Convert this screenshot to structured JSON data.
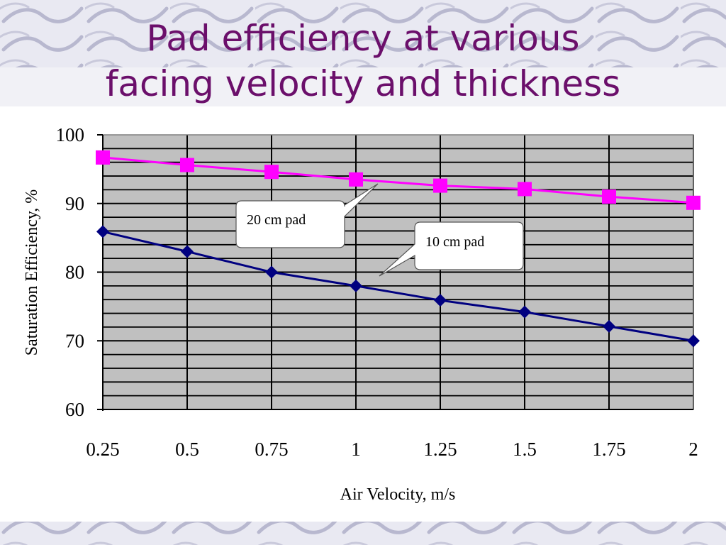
{
  "slide": {
    "title_line1": "Pad efficiency at various",
    "title_line2": "facing velocity and thickness"
  },
  "colors": {
    "title": "#6b0f6b",
    "plot_area": "#c0c0c0",
    "series_20cm": "#ff00ff",
    "series_10cm": "#000080"
  },
  "chart_data": {
    "type": "line",
    "x": [
      0.25,
      0.5,
      0.75,
      1,
      1.25,
      1.5,
      1.75,
      2
    ],
    "x_tick_labels": [
      "0.25",
      "0.5",
      "0.75",
      "1",
      "1.25",
      "1.5",
      "1.75",
      "2"
    ],
    "y_tick_labels": [
      "100",
      "90",
      "80",
      "70",
      "60"
    ],
    "xlabel": "Air Velocity, m/s",
    "ylabel": "Saturation Efficiency, %",
    "ylim": [
      60,
      100
    ],
    "grid": true,
    "series": [
      {
        "name": "20 cm pad",
        "marker": "square",
        "color": "#ff00ff",
        "values": [
          96.7,
          95.6,
          94.6,
          93.5,
          92.6,
          92.1,
          91.0,
          90.1
        ]
      },
      {
        "name": "10 cm pad",
        "marker": "diamond",
        "color": "#000080",
        "values": [
          85.9,
          83.0,
          80.0,
          78.0,
          75.9,
          74.2,
          72.1,
          70.0
        ]
      }
    ],
    "annotations": [
      {
        "text": "20 cm pad",
        "points_to": "20 cm pad series near x=1"
      },
      {
        "text": "10 cm pad",
        "points_to": "10 cm pad series near x=1"
      }
    ]
  }
}
